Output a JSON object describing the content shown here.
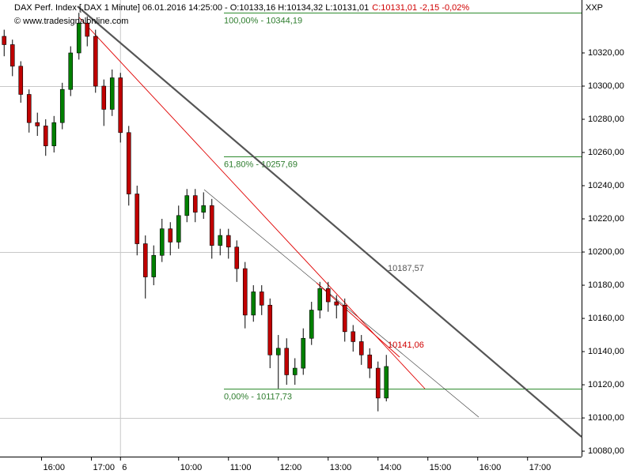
{
  "chart_data": {
    "type": "candlestick",
    "header": {
      "info": "DAX Perf. Index [.DAX  1 Minute] 06.01.2016 14:25:00 - O:10133,16 H:10134,32 L:10131,01",
      "change": "C:10131,01 -2,15 -0,02%",
      "copyright": "© www.tradesignalonline.com",
      "symbol": "XXP"
    },
    "x": [
      5,
      15,
      25,
      35,
      45,
      55,
      65,
      75,
      85,
      95,
      105,
      115,
      125,
      135,
      145,
      155,
      165,
      175,
      185,
      195,
      205,
      215,
      225,
      235,
      245,
      255,
      265,
      275,
      285,
      295,
      305,
      315,
      325,
      335,
      345,
      355,
      365,
      375,
      385,
      395,
      405,
      415,
      425,
      435,
      445,
      455,
      465
    ],
    "open": [
      10330,
      10325,
      10312,
      10295,
      10278,
      10276,
      10264,
      10278,
      10298,
      10320,
      10338,
      10330,
      10300,
      10286,
      10305,
      10272,
      10235,
      10205,
      10185,
      10198,
      10214,
      10206,
      10222,
      10234,
      10224,
      10228,
      10204,
      10210,
      10203,
      10190,
      10162,
      10176,
      10168,
      10138,
      10142,
      10126,
      10130,
      10148,
      10165,
      10178,
      10170,
      10168,
      10152,
      10146,
      10138,
      10130,
      10112
    ],
    "high": [
      10334,
      10328,
      10315,
      10298,
      10284,
      10280,
      10282,
      10302,
      10324,
      10344.19,
      10342,
      10334,
      10304,
      10310,
      10308,
      10276,
      10240,
      10210,
      10204,
      10220,
      10218,
      10228,
      10238,
      10238,
      10236,
      10232,
      10214,
      10214,
      10207,
      10194,
      10180,
      10180,
      10172,
      10150,
      10148,
      10136,
      10154,
      10170,
      10182,
      10182,
      10174,
      10172,
      10156,
      10150,
      10142,
      10134,
      10138
    ],
    "low": [
      10318,
      10306,
      10290,
      10272,
      10270,
      10258,
      10260,
      10274,
      10294,
      10316,
      10324,
      10296,
      10276,
      10282,
      10266,
      10228,
      10198,
      10172,
      10180,
      10194,
      10198,
      10202,
      10218,
      10218,
      10220,
      10196,
      10198,
      10196,
      10182,
      10154,
      10158,
      10162,
      10130,
      10117.73,
      10120,
      10120,
      10126,
      10144,
      10160,
      10164,
      10160,
      10146,
      10140,
      10132,
      10124,
      10104,
      10110
    ],
    "close": [
      10325,
      10312,
      10295,
      10278,
      10276,
      10264,
      10278,
      10298,
      10320,
      10338,
      10330,
      10300,
      10286,
      10305,
      10272,
      10235,
      10205,
      10185,
      10198,
      10214,
      10206,
      10222,
      10234,
      10224,
      10228,
      10204,
      10210,
      10203,
      10190,
      10162,
      10176,
      10168,
      10138,
      10142,
      10126,
      10130,
      10148,
      10165,
      10178,
      10170,
      10168,
      10152,
      10146,
      10138,
      10130,
      10112,
      10131.01
    ],
    "up_color": "#008000",
    "down_color": "#c00000",
    "xlim": [
      0,
      700
    ],
    "xticks": [
      {
        "value": 50,
        "label": "16:00"
      },
      {
        "value": 110,
        "label": "17:00"
      },
      {
        "value": 145,
        "label": "6"
      },
      {
        "value": 215,
        "label": "10:00"
      },
      {
        "value": 275,
        "label": "11:00"
      },
      {
        "value": 335,
        "label": "12:00"
      },
      {
        "value": 395,
        "label": "13:00"
      },
      {
        "value": 455,
        "label": "14:00"
      },
      {
        "value": 515,
        "label": "15:00"
      },
      {
        "value": 575,
        "label": "16:00"
      },
      {
        "value": 635,
        "label": "17:00"
      }
    ],
    "ylim": [
      10076.7,
      10351.9
    ],
    "yticks": [
      {
        "value": 10080,
        "label": "10080,00"
      },
      {
        "value": 10100,
        "label": "10100,00"
      },
      {
        "value": 10120,
        "label": "10120,00"
      },
      {
        "value": 10140,
        "label": "10140,00"
      },
      {
        "value": 10160,
        "label": "10160,00"
      },
      {
        "value": 10180,
        "label": "10180,00"
      },
      {
        "value": 10200,
        "label": "10200,00"
      },
      {
        "value": 10220,
        "label": "10220,00"
      },
      {
        "value": 10240,
        "label": "10240,00"
      },
      {
        "value": 10260,
        "label": "10260,00"
      },
      {
        "value": 10280,
        "label": "10280,00"
      },
      {
        "value": 10300,
        "label": "10300,00"
      },
      {
        "value": 10320,
        "label": "10320,00"
      }
    ],
    "grid_lines": [
      10100,
      10200,
      10300
    ],
    "fib_levels": [
      {
        "value": 10344.19,
        "label": "100,00% - 10344,19"
      },
      {
        "value": 10257.69,
        "label": "61,80% - 10257,69"
      },
      {
        "value": 10117.73,
        "label": "0,00% - 10117,73"
      }
    ],
    "annotations": [
      "10187,57",
      "10141,06"
    ]
  }
}
